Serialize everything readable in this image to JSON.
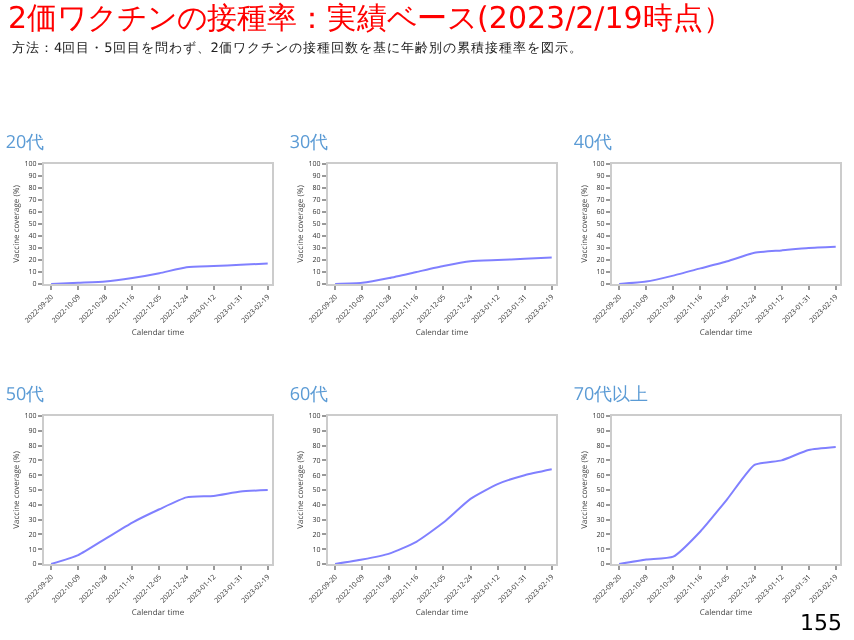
{
  "chart_data": [
    {
      "type": "other",
      "title": "2価ワクチンの接種率：実績ベース(2023/2/19時点）",
      "subtitle": "方法：4回目・5回目を問わず、2価ワクチンの接種回数を基に年齢別の累積接種率を図示。",
      "annotations": [
        "155"
      ]
    },
    {
      "type": "line",
      "title": "20代",
      "xlabel": "Calendar time",
      "ylabel": "Vaccine coverage (%)",
      "x": [
        "2022-09-20",
        "2022-10-09",
        "2022-10-28",
        "2022-11-16",
        "2022-12-05",
        "2022-12-24",
        "2023-01-12",
        "2023-01-31",
        "2023-02-19"
      ],
      "values": [
        0,
        1,
        2,
        5,
        9,
        14,
        15,
        16,
        17
      ],
      "color": "#8080ff",
      "xlim": [
        "2022-09-15",
        "2023-02-22"
      ],
      "xticks": [
        "2022-09-20",
        "2022-10-09",
        "2022-10-28",
        "2022-11-16",
        "2022-12-05",
        "2022-12-24",
        "2023-01-12",
        "2023-01-31",
        "2023-02-19"
      ],
      "ylim": [
        0,
        100
      ],
      "yticks": [
        0,
        10,
        20,
        30,
        40,
        50,
        60,
        70,
        80,
        90,
        100
      ]
    },
    {
      "type": "line",
      "title": "30代",
      "xlabel": "Calendar time",
      "ylabel": "Vaccine coverage (%)",
      "x": [
        "2022-09-20",
        "2022-10-09",
        "2022-10-28",
        "2022-11-16",
        "2022-12-05",
        "2022-12-24",
        "2023-01-12",
        "2023-01-31",
        "2023-02-19"
      ],
      "values": [
        0,
        1,
        5,
        10,
        15,
        19,
        20,
        21,
        22
      ],
      "color": "#8080ff",
      "xlim": [
        "2022-09-15",
        "2023-02-22"
      ],
      "xticks": [
        "2022-09-20",
        "2022-10-09",
        "2022-10-28",
        "2022-11-16",
        "2022-12-05",
        "2022-12-24",
        "2023-01-12",
        "2023-01-31",
        "2023-02-19"
      ],
      "ylim": [
        0,
        100
      ],
      "yticks": [
        0,
        10,
        20,
        30,
        40,
        50,
        60,
        70,
        80,
        90,
        100
      ]
    },
    {
      "type": "line",
      "title": "40代",
      "xlabel": "Calendar time",
      "ylabel": "Vaccine coverage (%)",
      "x": [
        "2022-09-20",
        "2022-10-09",
        "2022-10-28",
        "2022-11-16",
        "2022-12-05",
        "2022-12-24",
        "2023-01-12",
        "2023-01-31",
        "2023-02-19"
      ],
      "values": [
        0,
        2,
        7,
        13,
        19,
        26,
        28,
        30,
        31
      ],
      "color": "#8080ff",
      "xlim": [
        "2022-09-15",
        "2023-02-22"
      ],
      "xticks": [
        "2022-09-20",
        "2022-10-09",
        "2022-10-28",
        "2022-11-16",
        "2022-12-05",
        "2022-12-24",
        "2023-01-12",
        "2023-01-31",
        "2023-02-19"
      ],
      "ylim": [
        0,
        100
      ],
      "yticks": [
        0,
        10,
        20,
        30,
        40,
        50,
        60,
        70,
        80,
        90,
        100
      ]
    },
    {
      "type": "line",
      "title": "50代",
      "xlabel": "Calendar time",
      "ylabel": "Vaccine coverage (%)",
      "x": [
        "2022-09-20",
        "2022-10-09",
        "2022-10-28",
        "2022-11-16",
        "2022-12-05",
        "2022-12-24",
        "2023-01-12",
        "2023-01-31",
        "2023-02-19"
      ],
      "values": [
        0,
        6,
        17,
        28,
        37,
        45,
        46,
        49,
        50
      ],
      "color": "#8080ff",
      "xlim": [
        "2022-09-15",
        "2023-02-22"
      ],
      "xticks": [
        "2022-09-20",
        "2022-10-09",
        "2022-10-28",
        "2022-11-16",
        "2022-12-05",
        "2022-12-24",
        "2023-01-12",
        "2023-01-31",
        "2023-02-19"
      ],
      "ylim": [
        0,
        100
      ],
      "yticks": [
        0,
        10,
        20,
        30,
        40,
        50,
        60,
        70,
        80,
        90,
        100
      ]
    },
    {
      "type": "line",
      "title": "60代",
      "xlabel": "Calendar time",
      "ylabel": "Vaccine coverage (%)",
      "x": [
        "2022-09-20",
        "2022-10-09",
        "2022-10-28",
        "2022-11-16",
        "2022-12-05",
        "2022-12-24",
        "2023-01-12",
        "2023-01-31",
        "2023-02-19"
      ],
      "values": [
        0,
        3,
        7,
        15,
        28,
        44,
        54,
        60,
        64
      ],
      "color": "#8080ff",
      "xlim": [
        "2022-09-15",
        "2023-02-22"
      ],
      "xticks": [
        "2022-09-20",
        "2022-10-09",
        "2022-10-28",
        "2022-11-16",
        "2022-12-05",
        "2022-12-24",
        "2023-01-12",
        "2023-01-31",
        "2023-02-19"
      ],
      "ylim": [
        0,
        100
      ],
      "yticks": [
        0,
        10,
        20,
        30,
        40,
        50,
        60,
        70,
        80,
        90,
        100
      ]
    },
    {
      "type": "line",
      "title": "70代以上",
      "xlabel": "Calendar time",
      "ylabel": "Vaccine coverage (%)",
      "x": [
        "2022-09-20",
        "2022-10-09",
        "2022-10-28",
        "2022-11-16",
        "2022-12-05",
        "2022-12-24",
        "2023-01-12",
        "2023-01-31",
        "2023-02-19"
      ],
      "values": [
        0,
        3,
        5,
        22,
        44,
        67,
        70,
        77,
        79
      ],
      "color": "#8080ff",
      "xlim": [
        "2022-09-15",
        "2023-02-22"
      ],
      "xticks": [
        "2022-09-20",
        "2022-10-09",
        "2022-10-28",
        "2022-11-16",
        "2022-12-05",
        "2022-12-24",
        "2023-01-12",
        "2023-01-31",
        "2023-02-19"
      ],
      "ylim": [
        0,
        100
      ],
      "yticks": [
        0,
        10,
        20,
        30,
        40,
        50,
        60,
        70,
        80,
        90,
        100
      ]
    }
  ]
}
